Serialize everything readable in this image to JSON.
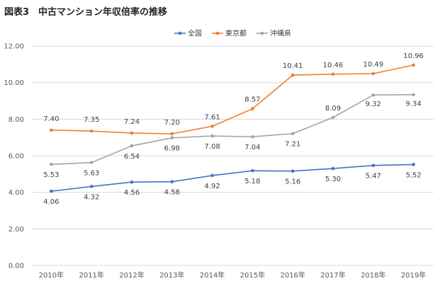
{
  "title": "図表3　中古マンション年収倍率の推移",
  "chart_data": {
    "type": "line",
    "categories": [
      "2010年",
      "2011年",
      "2012年",
      "2013年",
      "2014年",
      "2015年",
      "2016年",
      "2017年",
      "2018年",
      "2019年"
    ],
    "series": [
      {
        "name": "全国",
        "color": "#4472C4",
        "values": [
          4.06,
          4.32,
          4.56,
          4.58,
          4.92,
          5.18,
          5.16,
          5.3,
          5.47,
          5.52
        ]
      },
      {
        "name": "東京都",
        "color": "#ED7D31",
        "values": [
          7.4,
          7.35,
          7.24,
          7.2,
          7.61,
          8.57,
          10.41,
          10.46,
          10.49,
          10.96
        ]
      },
      {
        "name": "沖縄県",
        "color": "#A5A5A5",
        "values": [
          5.53,
          5.63,
          6.54,
          6.98,
          7.08,
          7.04,
          7.21,
          8.09,
          9.32,
          9.34
        ]
      }
    ],
    "ylim": [
      0,
      12
    ],
    "yticks": [
      "0.00",
      "2.00",
      "4.00",
      "6.00",
      "8.00",
      "10.00",
      "12.00"
    ],
    "grid": true,
    "legend": "top-center",
    "data_labels": true
  }
}
